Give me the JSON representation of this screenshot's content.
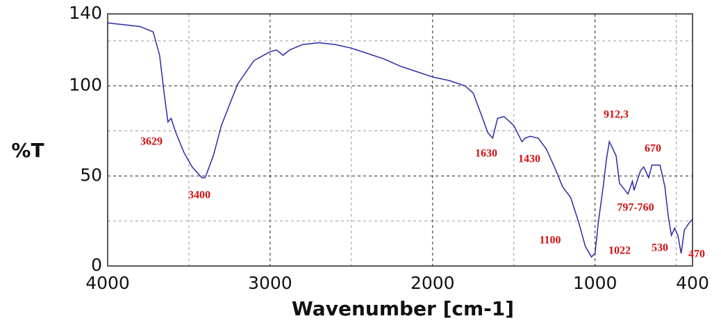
{
  "chart_data": {
    "type": "line",
    "x_label": "Wavenumber [cm-1]",
    "y_label": "%T",
    "xlim": [
      4000,
      400
    ],
    "ylim": [
      0,
      140
    ],
    "xticks": [
      4000,
      3000,
      2000,
      1000,
      400
    ],
    "yticks": [
      0,
      50,
      100,
      140
    ],
    "x_minor_grid": [
      3500,
      2500,
      1500,
      500
    ],
    "y_minor_grid": [
      25,
      75,
      125
    ],
    "grid": true,
    "series": [
      {
        "color": "#2a2aa8",
        "x": [
          4000,
          3900,
          3800,
          3720,
          3680,
          3650,
          3629,
          3610,
          3580,
          3530,
          3480,
          3420,
          3400,
          3350,
          3300,
          3200,
          3100,
          3000,
          2960,
          2920,
          2880,
          2800,
          2700,
          2600,
          2500,
          2400,
          2300,
          2200,
          2100,
          2000,
          1900,
          1800,
          1750,
          1700,
          1660,
          1630,
          1600,
          1560,
          1500,
          1450,
          1430,
          1400,
          1350,
          1300,
          1250,
          1200,
          1150,
          1100,
          1060,
          1022,
          1000,
          980,
          950,
          930,
          912,
          890,
          870,
          850,
          797,
          770,
          760,
          720,
          700,
          670,
          650,
          600,
          570,
          550,
          530,
          510,
          490,
          470,
          450,
          420,
          400
        ],
        "values": [
          135,
          134,
          133,
          130,
          117,
          94,
          80,
          82,
          74,
          63,
          55,
          49,
          49,
          61,
          78,
          101,
          114,
          119,
          120,
          117,
          120,
          123,
          124,
          123,
          121,
          118,
          115,
          111,
          108,
          105,
          103,
          100,
          96,
          84,
          74,
          71,
          82,
          83,
          78,
          69,
          71,
          72,
          71,
          65,
          55,
          44,
          38,
          24,
          11,
          5,
          7,
          24,
          44,
          59,
          69,
          65,
          61,
          46,
          40,
          47,
          42,
          53,
          55,
          49,
          56,
          56,
          44,
          28,
          17,
          21,
          17,
          7,
          20,
          24,
          26
        ]
      }
    ],
    "annotations": [
      "3629",
      "3400",
      "1630",
      "1430",
      "912,3",
      "670",
      "797-760",
      "1100",
      "1022",
      "530",
      "470"
    ]
  }
}
